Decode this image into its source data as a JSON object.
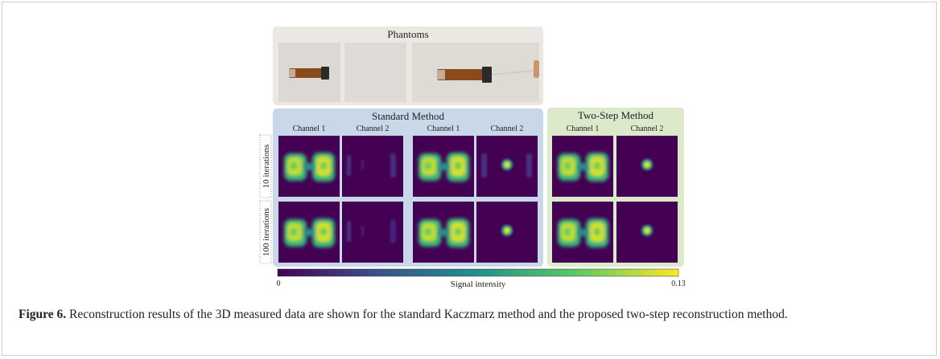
{
  "phantoms": {
    "title": "Phantoms"
  },
  "standard": {
    "title": "Standard Method",
    "channels": [
      "Channel 1",
      "Channel 2",
      "Channel 1",
      "Channel 2"
    ]
  },
  "two_step": {
    "title": "Two-Step Method",
    "channels": [
      "Channel 1",
      "Channel 2"
    ]
  },
  "rows": [
    "10 iterations",
    "100 iterations"
  ],
  "colorbar": {
    "min": 0,
    "max": 0.13,
    "label": "Signal intensity"
  },
  "caption": {
    "label": "Figure 6.",
    "text": "Reconstruction results of the 3D measured data are shown for the standard Kaczmarz method and the proposed two-step reconstruction method."
  }
}
